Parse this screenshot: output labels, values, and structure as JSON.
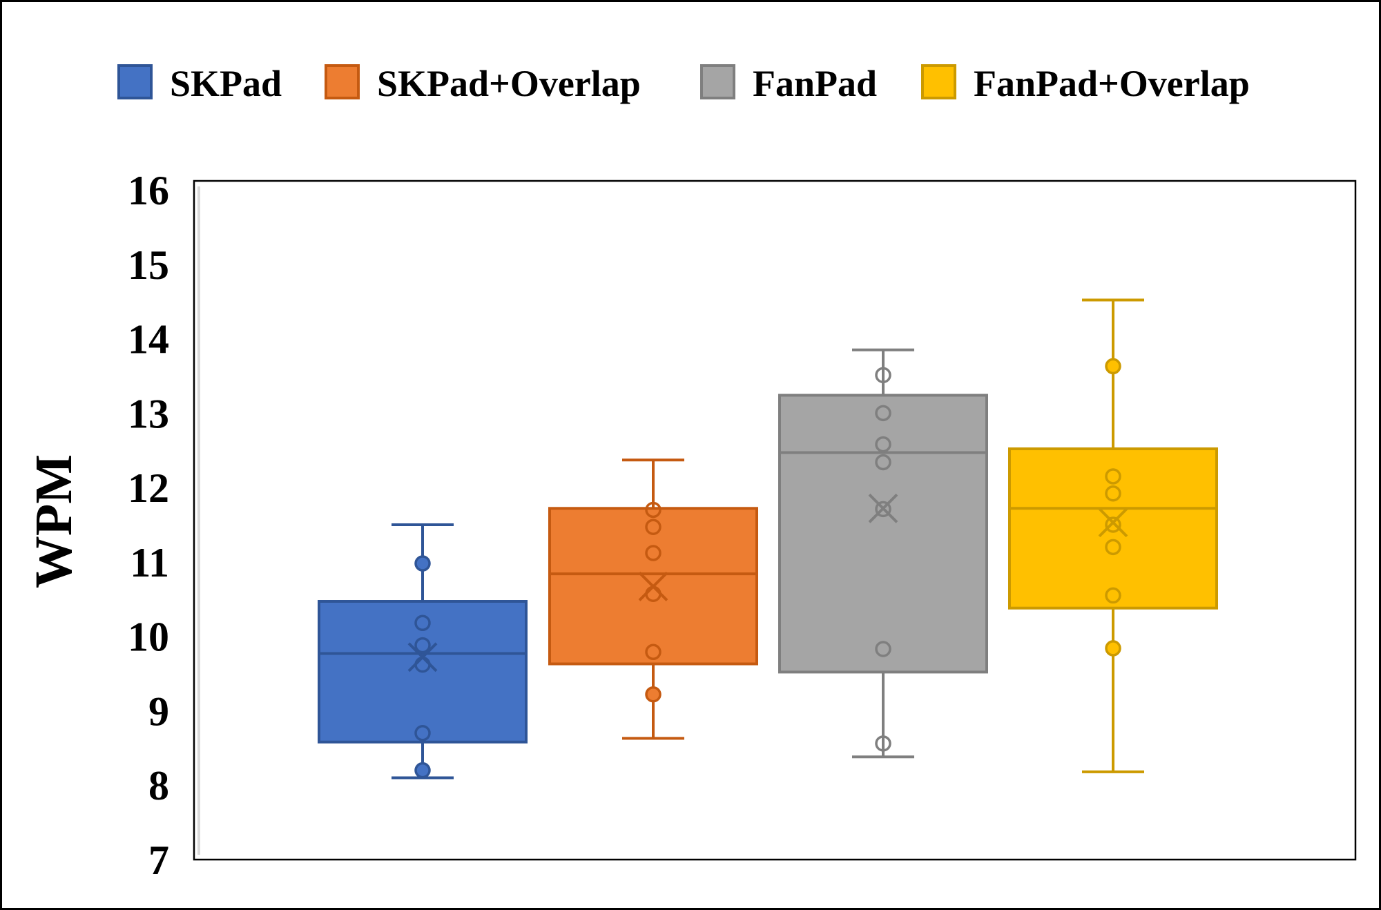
{
  "chart_data": {
    "type": "box",
    "ylabel": "WPM",
    "xlabel": "",
    "title": "",
    "ylim": [
      7,
      16
    ],
    "yticks": [
      7,
      8,
      9,
      10,
      11,
      12,
      13,
      14,
      15,
      16
    ],
    "grid": false,
    "legend_position": "top",
    "series": [
      {
        "name": "SKPad",
        "color": "#4472C4",
        "edge": "#2F5597",
        "whisker_low": 8.1,
        "q1": 8.58,
        "median": 9.77,
        "q3": 10.47,
        "whisker_high": 11.5,
        "mean": 9.72,
        "inner_points": [
          10.18,
          9.88,
          9.62,
          8.7
        ],
        "outer_points": [
          10.98,
          8.2
        ]
      },
      {
        "name": "SKPad+Overlap",
        "color": "#ED7D31",
        "edge": "#C55A11",
        "whisker_low": 8.63,
        "q1": 9.63,
        "median": 10.84,
        "q3": 11.72,
        "whisker_high": 12.37,
        "mean": 10.67,
        "inner_points": [
          11.7,
          11.47,
          11.12,
          10.57,
          9.79
        ],
        "outer_points": [
          9.22
        ]
      },
      {
        "name": "FanPad",
        "color": "#A5A5A5",
        "edge": "#7F7F7F",
        "whisker_low": 8.38,
        "q1": 9.52,
        "median": 12.47,
        "q3": 13.24,
        "whisker_high": 13.85,
        "mean": 11.72,
        "inner_points": [
          13.51,
          13.0,
          12.58,
          12.34,
          11.71,
          9.83,
          8.56
        ],
        "outer_points": []
      },
      {
        "name": "FanPad+Overlap",
        "color": "#FFC000",
        "edge": "#CC9A00",
        "whisker_low": 8.18,
        "q1": 10.38,
        "median": 11.72,
        "q3": 12.52,
        "whisker_high": 14.52,
        "mean": 11.53,
        "inner_points": [
          12.15,
          11.92,
          11.5,
          11.2,
          10.55
        ],
        "outer_points": [
          13.63,
          9.84
        ]
      }
    ]
  }
}
